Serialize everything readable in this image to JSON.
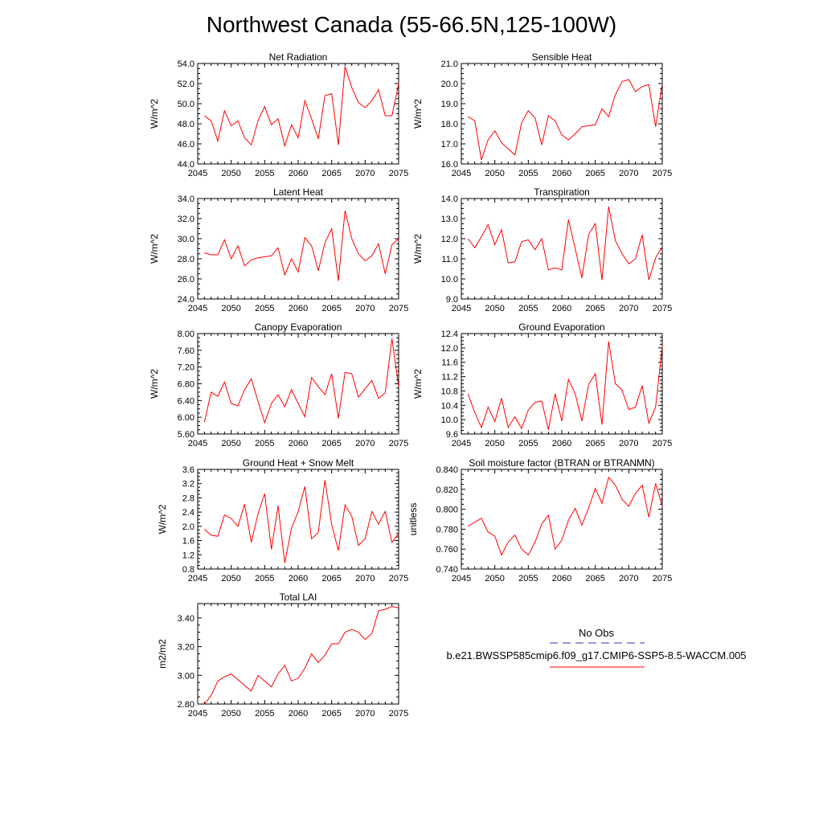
{
  "figure": {
    "title": "Northwest Canada (55-66.5N,125-100W)"
  },
  "legend": {
    "entries": [
      {
        "label": "No Obs",
        "line_color": "#3333aa",
        "dashed": true
      },
      {
        "label": "b.e21.BWSSP585cmip6.f09_g17.CMIP6-SSP5-8.5-WACCM.005",
        "line_color": "#ff0000",
        "dashed": false
      }
    ]
  },
  "chart_data": [
    {
      "type": "line",
      "title": "Net Radiation",
      "ylabel": "W/m^2",
      "xlim": [
        2045,
        2075
      ],
      "ylim": [
        44,
        54
      ],
      "x_ticks": [
        2045,
        2050,
        2055,
        2060,
        2065,
        2070,
        2075
      ],
      "y_ticks": [
        "44.0",
        "46.0",
        "48.0",
        "50.0",
        "52.0",
        "54.0"
      ],
      "x": [
        2046,
        2047,
        2048,
        2049,
        2050,
        2051,
        2052,
        2053,
        2054,
        2055,
        2056,
        2057,
        2058,
        2059,
        2060,
        2061,
        2062,
        2063,
        2064,
        2065,
        2066,
        2067,
        2068,
        2069,
        2070,
        2071,
        2072,
        2073,
        2074,
        2075
      ],
      "series": [
        {
          "color": "#ff0000",
          "values": [
            48.8,
            48.3,
            46.3,
            49.3,
            47.8,
            48.3,
            46.6,
            45.9,
            48.3,
            49.7,
            47.9,
            48.5,
            45.8,
            47.9,
            46.6,
            50.3,
            48.5,
            46.5,
            50.8,
            51.0,
            45.9,
            53.7,
            51.6,
            50.1,
            49.6,
            50.3,
            51.4,
            48.8,
            48.8,
            52.0
          ]
        }
      ]
    },
    {
      "type": "line",
      "title": "Sensible Heat",
      "ylabel": "W/m^2",
      "xlim": [
        2045,
        2075
      ],
      "ylim": [
        16,
        21
      ],
      "x_ticks": [
        2045,
        2050,
        2055,
        2060,
        2065,
        2070,
        2075
      ],
      "y_ticks": [
        "16.0",
        "17.0",
        "18.0",
        "19.0",
        "20.0",
        "21.0"
      ],
      "x": [
        2046,
        2047,
        2048,
        2049,
        2050,
        2051,
        2052,
        2053,
        2054,
        2055,
        2056,
        2057,
        2058,
        2059,
        2060,
        2061,
        2062,
        2063,
        2064,
        2065,
        2066,
        2067,
        2068,
        2069,
        2070,
        2071,
        2072,
        2073,
        2074,
        2075
      ],
      "series": [
        {
          "color": "#ff0000",
          "values": [
            18.35,
            18.15,
            16.2,
            17.2,
            17.65,
            17.05,
            16.75,
            16.45,
            18.05,
            18.65,
            18.3,
            16.95,
            18.4,
            18.15,
            17.45,
            17.2,
            17.5,
            17.85,
            17.9,
            17.95,
            18.75,
            18.35,
            19.45,
            20.1,
            20.2,
            19.6,
            19.85,
            19.95,
            17.85,
            20.0
          ]
        }
      ]
    },
    {
      "type": "line",
      "title": "Latent Heat",
      "ylabel": "W/m^2",
      "xlim": [
        2045,
        2075
      ],
      "ylim": [
        24,
        34
      ],
      "x_ticks": [
        2045,
        2050,
        2055,
        2060,
        2065,
        2070,
        2075
      ],
      "y_ticks": [
        "24.0",
        "26.0",
        "28.0",
        "30.0",
        "32.0",
        "34.0"
      ],
      "x": [
        2046,
        2047,
        2048,
        2049,
        2050,
        2051,
        2052,
        2053,
        2054,
        2055,
        2056,
        2057,
        2058,
        2059,
        2060,
        2061,
        2062,
        2063,
        2064,
        2065,
        2066,
        2067,
        2068,
        2069,
        2070,
        2071,
        2072,
        2073,
        2074,
        2075
      ],
      "series": [
        {
          "color": "#ff0000",
          "values": [
            28.6,
            28.4,
            28.4,
            29.9,
            28.0,
            29.3,
            27.3,
            27.9,
            28.1,
            28.2,
            28.3,
            29.1,
            26.4,
            28.0,
            26.7,
            30.1,
            29.3,
            26.8,
            29.6,
            31.0,
            25.8,
            32.8,
            30.0,
            28.5,
            27.8,
            28.3,
            29.5,
            26.5,
            29.4,
            30.0
          ]
        }
      ]
    },
    {
      "type": "line",
      "title": "Transpiration",
      "ylabel": "W/m^2",
      "xlim": [
        2045,
        2075
      ],
      "ylim": [
        9,
        14
      ],
      "x_ticks": [
        2045,
        2050,
        2055,
        2060,
        2065,
        2070,
        2075
      ],
      "y_ticks": [
        "9.0",
        "10.0",
        "11.0",
        "12.0",
        "13.0",
        "14.0"
      ],
      "x": [
        2046,
        2047,
        2048,
        2049,
        2050,
        2051,
        2052,
        2053,
        2054,
        2055,
        2056,
        2057,
        2058,
        2059,
        2060,
        2061,
        2062,
        2063,
        2064,
        2065,
        2066,
        2067,
        2068,
        2069,
        2070,
        2071,
        2072,
        2073,
        2074,
        2075
      ],
      "series": [
        {
          "color": "#ff0000",
          "values": [
            12.0,
            11.55,
            12.1,
            12.7,
            11.7,
            12.45,
            10.8,
            10.85,
            11.85,
            11.95,
            11.45,
            12.0,
            10.45,
            10.55,
            10.45,
            12.95,
            11.5,
            10.05,
            12.2,
            12.75,
            9.95,
            13.6,
            11.9,
            11.25,
            10.75,
            11.0,
            12.2,
            9.95,
            11.05,
            11.6
          ]
        }
      ]
    },
    {
      "type": "line",
      "title": "Canopy Evaporation",
      "ylabel": "W/m^2",
      "xlim": [
        2045,
        2075
      ],
      "ylim": [
        5.6,
        8.0
      ],
      "x_ticks": [
        2045,
        2050,
        2055,
        2060,
        2065,
        2070,
        2075
      ],
      "y_ticks": [
        "5.60",
        "6.00",
        "6.40",
        "6.80",
        "7.20",
        "7.60",
        "8.00"
      ],
      "x": [
        2046,
        2047,
        2048,
        2049,
        2050,
        2051,
        2052,
        2053,
        2054,
        2055,
        2056,
        2057,
        2058,
        2059,
        2060,
        2061,
        2062,
        2063,
        2064,
        2065,
        2066,
        2067,
        2068,
        2069,
        2070,
        2071,
        2072,
        2073,
        2074,
        2075
      ],
      "series": [
        {
          "color": "#ff0000",
          "values": [
            5.88,
            6.6,
            6.5,
            6.84,
            6.33,
            6.27,
            6.66,
            6.92,
            6.38,
            5.87,
            6.33,
            6.54,
            6.25,
            6.66,
            6.33,
            6.01,
            6.95,
            6.73,
            6.54,
            7.04,
            5.97,
            7.07,
            7.04,
            6.48,
            6.68,
            6.88,
            6.45,
            6.58,
            7.88,
            6.72
          ]
        }
      ]
    },
    {
      "type": "line",
      "title": "Ground Evaporation",
      "ylabel": "W/m^2",
      "xlim": [
        2045,
        2075
      ],
      "ylim": [
        9.6,
        12.4
      ],
      "x_ticks": [
        2045,
        2050,
        2055,
        2060,
        2065,
        2070,
        2075
      ],
      "y_ticks": [
        "9.6",
        "10.0",
        "10.4",
        "10.8",
        "11.2",
        "11.6",
        "12.0",
        "12.4"
      ],
      "x": [
        2046,
        2047,
        2048,
        2049,
        2050,
        2051,
        2052,
        2053,
        2054,
        2055,
        2056,
        2057,
        2058,
        2059,
        2060,
        2061,
        2062,
        2063,
        2064,
        2065,
        2066,
        2067,
        2068,
        2069,
        2070,
        2071,
        2072,
        2073,
        2074,
        2075
      ],
      "series": [
        {
          "color": "#ff0000",
          "values": [
            10.72,
            10.2,
            9.78,
            10.35,
            9.95,
            10.6,
            9.78,
            10.08,
            9.75,
            10.27,
            10.48,
            10.52,
            9.72,
            10.72,
            9.96,
            11.12,
            10.72,
            9.96,
            10.98,
            11.28,
            9.86,
            12.18,
            11.0,
            10.82,
            10.28,
            10.35,
            10.95,
            9.9,
            10.35,
            12.05
          ]
        }
      ]
    },
    {
      "type": "line",
      "title": "Ground Heat + Snow Melt",
      "ylabel": "W/m^2",
      "xlim": [
        2045,
        2075
      ],
      "ylim": [
        0.8,
        3.6
      ],
      "x_ticks": [
        2045,
        2050,
        2055,
        2060,
        2065,
        2070,
        2075
      ],
      "y_ticks": [
        "0.8",
        "1.2",
        "1.6",
        "2.0",
        "2.4",
        "2.8",
        "3.2",
        "3.6"
      ],
      "x": [
        2046,
        2047,
        2048,
        2049,
        2050,
        2051,
        2052,
        2053,
        2054,
        2055,
        2056,
        2057,
        2058,
        2059,
        2060,
        2061,
        2062,
        2063,
        2064,
        2065,
        2066,
        2067,
        2068,
        2069,
        2070,
        2071,
        2072,
        2073,
        2074,
        2075
      ],
      "series": [
        {
          "color": "#ff0000",
          "values": [
            1.92,
            1.75,
            1.72,
            2.32,
            2.22,
            2.0,
            2.62,
            1.55,
            2.35,
            2.92,
            1.35,
            2.58,
            0.97,
            1.95,
            2.42,
            3.12,
            1.65,
            1.82,
            3.3,
            2.05,
            1.32,
            2.6,
            2.28,
            1.46,
            1.65,
            2.42,
            2.06,
            2.42,
            1.55,
            1.8
          ]
        }
      ]
    },
    {
      "type": "line",
      "title": "Soil moisture factor (BTRAN or BTRANMN)",
      "ylabel": "unitless",
      "xlim": [
        2045,
        2075
      ],
      "ylim": [
        0.74,
        0.84
      ],
      "x_ticks": [
        2045,
        2050,
        2055,
        2060,
        2065,
        2070,
        2075
      ],
      "y_ticks": [
        "0.740",
        "0.760",
        "0.780",
        "0.800",
        "0.820",
        "0.840"
      ],
      "x": [
        2046,
        2047,
        2048,
        2049,
        2050,
        2051,
        2052,
        2053,
        2054,
        2055,
        2056,
        2057,
        2058,
        2059,
        2060,
        2061,
        2062,
        2063,
        2064,
        2065,
        2066,
        2067,
        2068,
        2069,
        2070,
        2071,
        2072,
        2073,
        2074,
        2075
      ],
      "series": [
        {
          "color": "#ff0000",
          "values": [
            0.783,
            0.787,
            0.791,
            0.777,
            0.773,
            0.754,
            0.767,
            0.774,
            0.76,
            0.754,
            0.767,
            0.785,
            0.794,
            0.76,
            0.769,
            0.789,
            0.801,
            0.784,
            0.801,
            0.821,
            0.806,
            0.832,
            0.824,
            0.81,
            0.803,
            0.816,
            0.824,
            0.792,
            0.826,
            0.803
          ]
        }
      ]
    },
    {
      "type": "line",
      "title": "Total LAI",
      "ylabel": "m2/m2",
      "xlim": [
        2045,
        2075
      ],
      "ylim": [
        2.8,
        3.5
      ],
      "x_ticks": [
        2045,
        2050,
        2055,
        2060,
        2065,
        2070,
        2075
      ],
      "y_ticks": [
        "2.80",
        "3.00",
        "3.20",
        "3.40"
      ],
      "x": [
        2046,
        2047,
        2048,
        2049,
        2050,
        2051,
        2052,
        2053,
        2054,
        2055,
        2056,
        2057,
        2058,
        2059,
        2060,
        2061,
        2062,
        2063,
        2064,
        2065,
        2066,
        2067,
        2068,
        2069,
        2070,
        2071,
        2072,
        2073,
        2074,
        2075
      ],
      "series": [
        {
          "color": "#ff0000",
          "values": [
            2.8,
            2.86,
            2.96,
            2.99,
            3.01,
            2.97,
            2.93,
            2.89,
            3.0,
            2.96,
            2.92,
            3.01,
            3.07,
            2.96,
            2.98,
            3.05,
            3.15,
            3.09,
            3.14,
            3.22,
            3.22,
            3.3,
            3.32,
            3.3,
            3.25,
            3.29,
            3.45,
            3.46,
            3.48,
            3.47
          ]
        }
      ]
    }
  ]
}
